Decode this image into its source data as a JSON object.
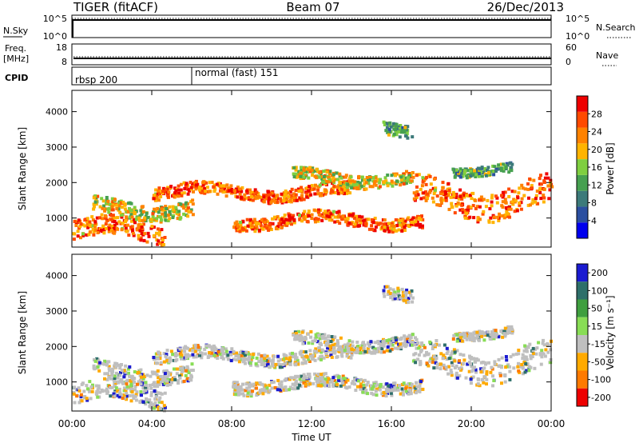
{
  "header": {
    "station": "TIGER (fitACF)",
    "beam": "Beam 07",
    "date": "26/Dec/2013"
  },
  "panels": {
    "nsky": {
      "label": "N.Sky",
      "ticks_left": [
        "10^5",
        "10^0"
      ],
      "right_label": "N.Search",
      "ticks_right": [
        "10^5",
        "10^0"
      ]
    },
    "freq": {
      "label_line1": "Freq.",
      "label_line2": "[MHz]",
      "ticks_left": [
        "18",
        "8"
      ],
      "right_label": "Nave",
      "ticks_right": [
        "60",
        "0"
      ]
    },
    "cpid": {
      "label": "CPID",
      "segments": [
        {
          "label": "rbsp 200",
          "start_hour": 0
        },
        {
          "label": "normal (fast) 151",
          "start_hour": 6
        }
      ]
    }
  },
  "chart_data": {
    "type": "heatmap",
    "xlabel": "Time UT",
    "x_ticks": [
      "00:00",
      "04:00",
      "08:00",
      "12:00",
      "16:00",
      "20:00",
      "00:00"
    ],
    "x_range_hours": [
      0,
      24
    ],
    "ylabel": "Slant Range [km]",
    "y_ticks": [
      1000,
      2000,
      3000,
      4000
    ],
    "y_range_km": [
      180,
      4600
    ],
    "power": {
      "colorbar_label": "Power [dB]",
      "ticks": [
        4,
        8,
        12,
        16,
        20,
        24,
        28
      ],
      "range": [
        0,
        32
      ]
    },
    "velocity": {
      "colorbar_label": "Velocity [m s⁻¹]",
      "ticks": [
        200,
        100,
        50,
        15,
        -15,
        -50,
        -100,
        -200
      ],
      "colors": [
        "#1a1ad0",
        "#2e6f6a",
        "#3f9f3f",
        "#88dd55",
        "#bfbfbf",
        "#ffaa00",
        "#ff7a00",
        "#ee0000"
      ]
    },
    "power_colors": [
      "#0000ee",
      "#2b4fa0",
      "#3c7a7a",
      "#46a050",
      "#7fcf40",
      "#ffb400",
      "#ff8200",
      "#ff4a00",
      "#ee0000"
    ],
    "echo_bands": [
      {
        "t0": 0.0,
        "t1": 4.6,
        "r0": 300,
        "r1": 900,
        "level": "high"
      },
      {
        "t0": 1.0,
        "t1": 6.0,
        "r0": 1000,
        "r1": 1500,
        "level": "mid"
      },
      {
        "t0": 4.0,
        "t1": 14.0,
        "r0": 1500,
        "r1": 1900,
        "level": "high"
      },
      {
        "t0": 8.0,
        "t1": 17.5,
        "r0": 700,
        "r1": 1100,
        "level": "high"
      },
      {
        "t0": 11.0,
        "t1": 17.0,
        "r0": 1900,
        "r1": 2300,
        "level": "mid"
      },
      {
        "t0": 17.0,
        "t1": 24.0,
        "r0": 1100,
        "r1": 2000,
        "level": "high"
      },
      {
        "t0": 19.0,
        "t1": 22.0,
        "r0": 2200,
        "r1": 2500,
        "level": "low"
      },
      {
        "t0": 15.5,
        "t1": 17.0,
        "r0": 3200,
        "r1": 3600,
        "level": "low"
      }
    ]
  }
}
